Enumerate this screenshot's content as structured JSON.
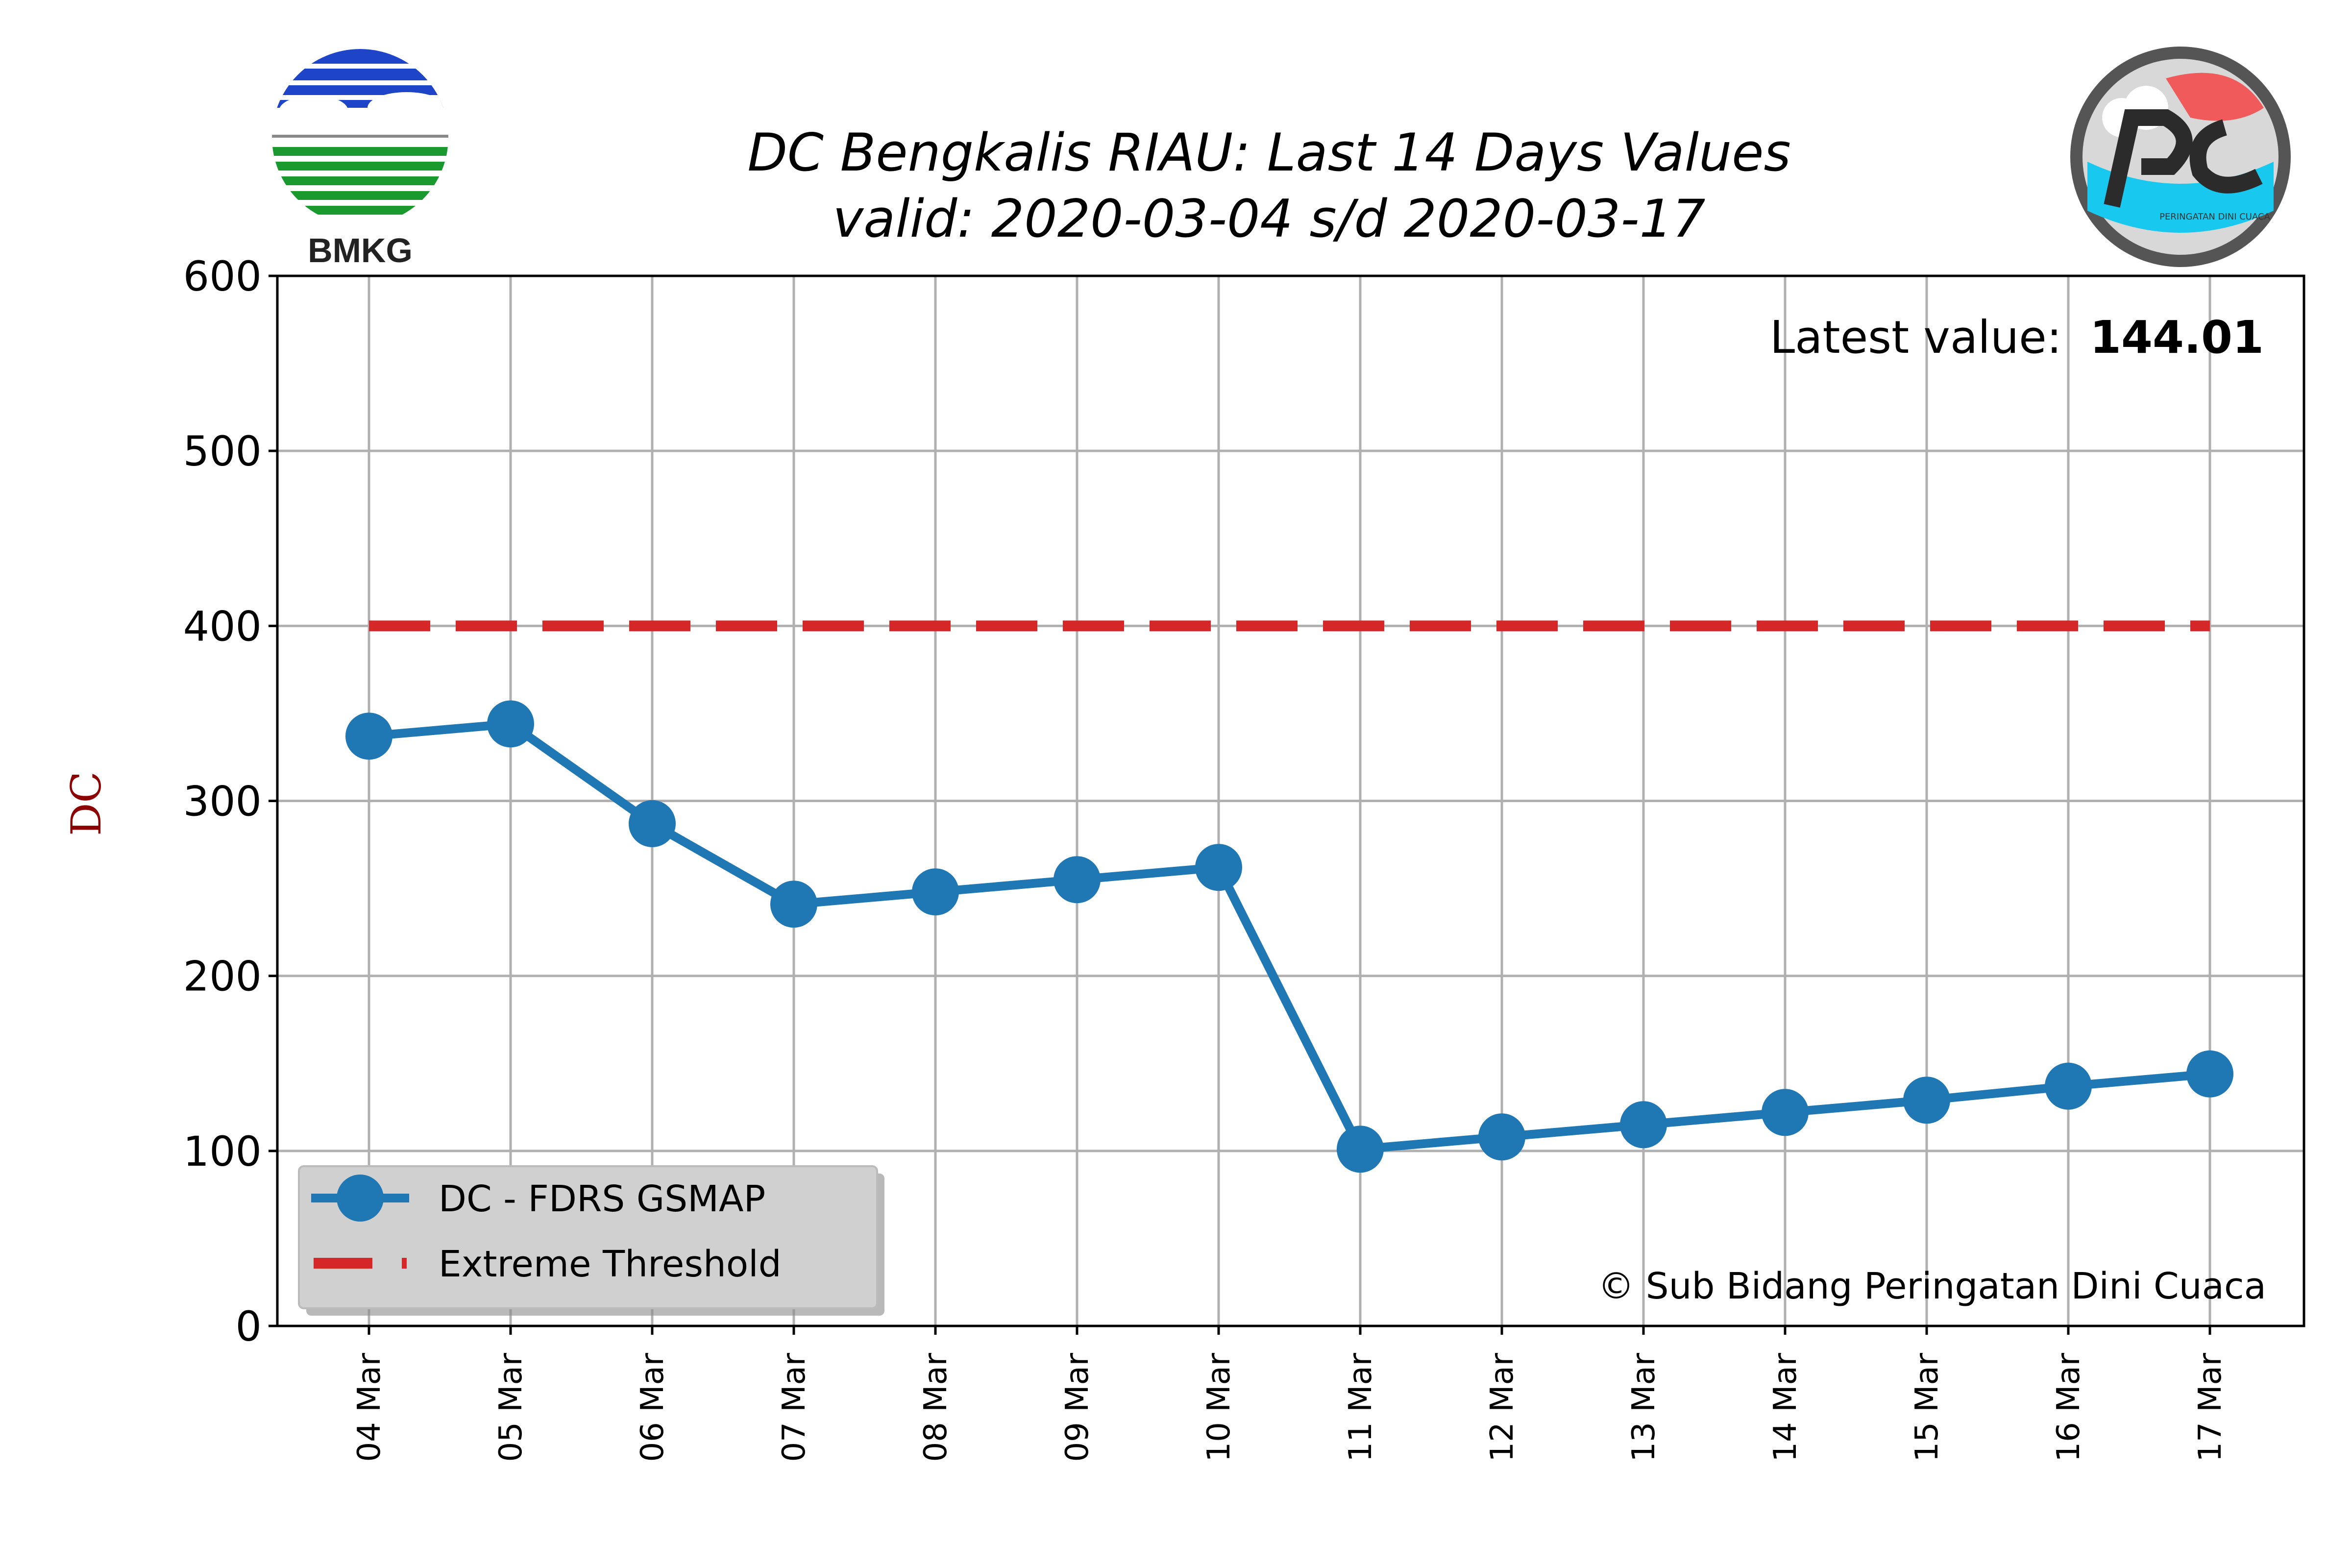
{
  "chart_data": {
    "type": "line",
    "title": "DC Bengkalis RIAU: Last 14 Days Values",
    "subtitle": "valid: 2020-03-04 s/d 2020-03-17",
    "xlabel": "",
    "ylabel": "DC",
    "ylim": [
      0,
      600
    ],
    "yticks": [
      0,
      100,
      200,
      300,
      400,
      500,
      600
    ],
    "categories": [
      "04 Mar",
      "05 Mar",
      "06 Mar",
      "07 Mar",
      "08 Mar",
      "09 Mar",
      "10 Mar",
      "11 Mar",
      "12 Mar",
      "13 Mar",
      "14 Mar",
      "15 Mar",
      "16 Mar",
      "17 Mar"
    ],
    "series": [
      {
        "name": "DC - FDRS GSMAP",
        "color": "#1f77b4",
        "style": "solid-with-markers",
        "values": [
          337,
          344,
          287,
          241,
          248,
          255,
          262,
          101,
          108,
          115,
          122,
          129,
          137,
          144.01
        ]
      },
      {
        "name": "Extreme Threshold",
        "color": "#d62728",
        "style": "dashed",
        "values": [
          400,
          400,
          400,
          400,
          400,
          400,
          400,
          400,
          400,
          400,
          400,
          400,
          400,
          400
        ]
      }
    ],
    "grid": true,
    "legend_position": "bottom-left",
    "annotations": {
      "latest_label": "Latest value:",
      "latest_value": "144.01",
      "credit": "© Sub Bidang Peringatan Dini Cuaca"
    }
  },
  "logos": {
    "left_text": "BMKG",
    "right_text": "PERINGATAN DINI CUACA"
  }
}
